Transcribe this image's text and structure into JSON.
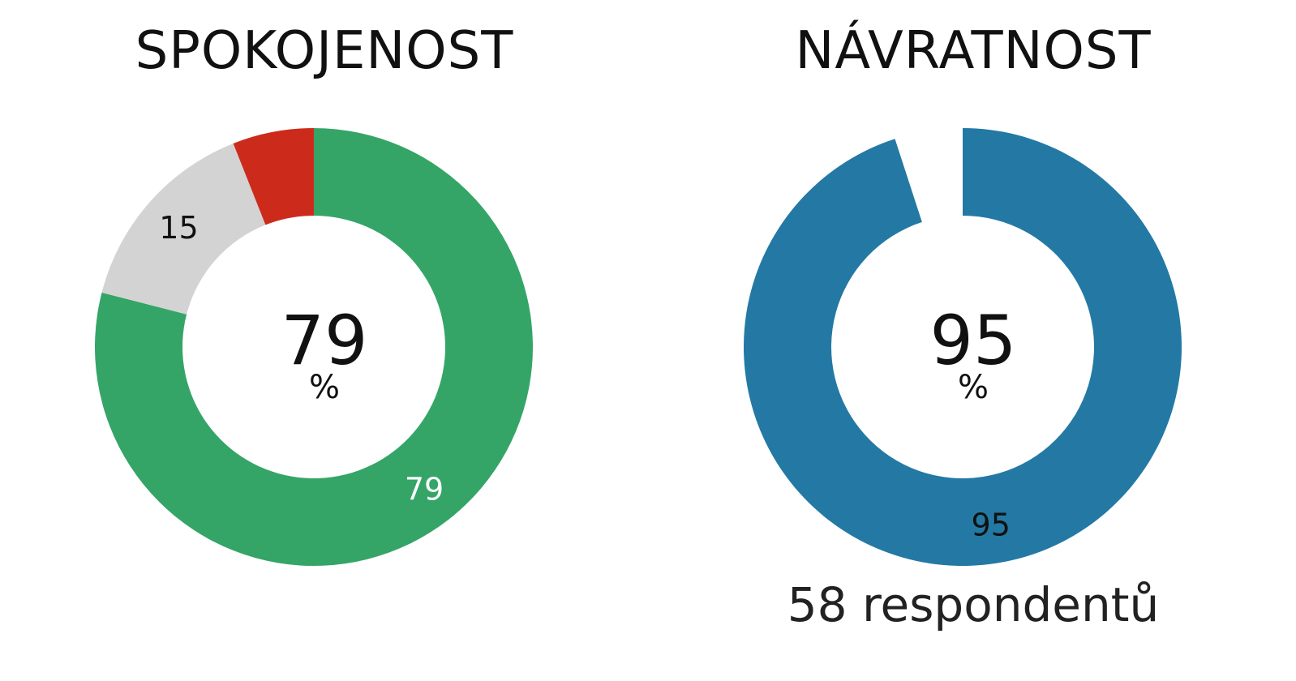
{
  "chart_data": [
    {
      "type": "pie",
      "title": "SPOKOJENOST",
      "center_value": "79",
      "center_unit": "%",
      "slices": [
        {
          "label": "79",
          "value": 79,
          "color": "#34a567",
          "label_color": "#ffffff",
          "show_label": true
        },
        {
          "label": "15",
          "value": 15,
          "color": "#d3d3d3",
          "label_color": "#111111",
          "show_label": true
        },
        {
          "label": "",
          "value": 6,
          "color": "#cc2b1c",
          "label_color": "#111111",
          "show_label": false
        }
      ]
    },
    {
      "type": "pie",
      "title": "NÁVRATNOST",
      "center_value": "95",
      "center_unit": "%",
      "footer": "58 respondentů",
      "slices": [
        {
          "label": "95",
          "value": 95,
          "color": "#2379a4",
          "label_color": "#111111",
          "show_label": true
        },
        {
          "label": "",
          "value": 5,
          "color": "#ffffff",
          "label_color": "#111111",
          "show_label": false
        }
      ]
    }
  ]
}
